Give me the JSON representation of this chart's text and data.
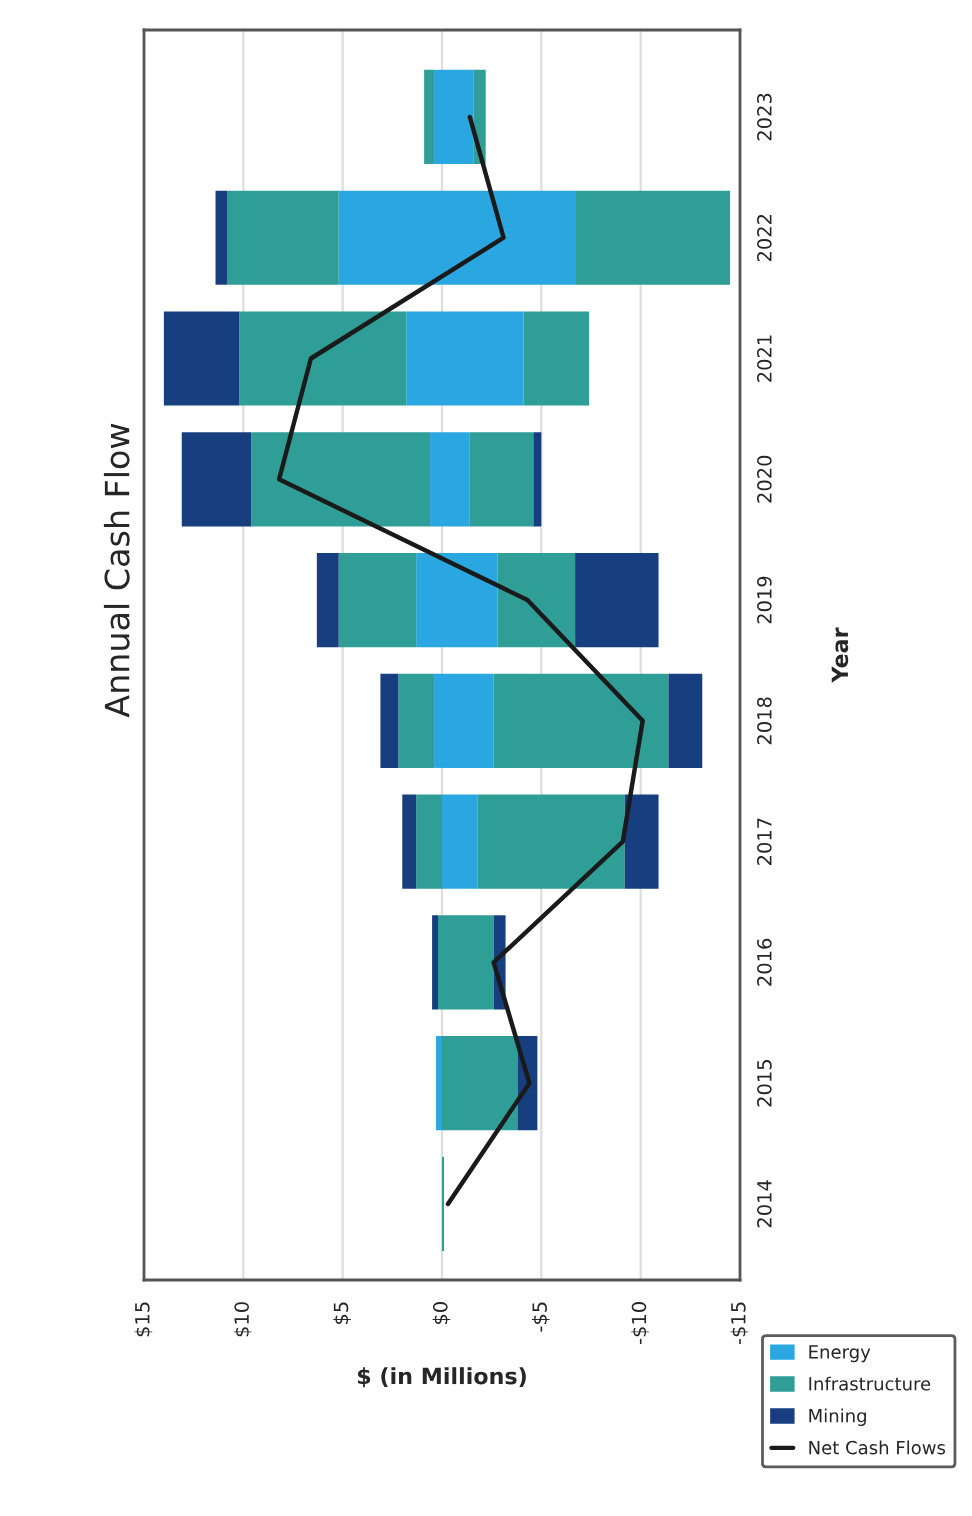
{
  "chart_data": {
    "type": "bar",
    "title": "Annual Cash Flow",
    "xlabel": "$ (in Millions)",
    "ylabel": "Year",
    "orientation": "horizontal",
    "stacked": true,
    "categories": [
      "2023",
      "2022",
      "2021",
      "2020",
      "2019",
      "2018",
      "2017",
      "2016",
      "2015",
      "2014"
    ],
    "series": [
      {
        "name": "Energy",
        "color": "#2aa7e0",
        "values": [
          0.4,
          5.2,
          1.8,
          0.6,
          1.3,
          0.4,
          null,
          null,
          0.3,
          null
        ]
      },
      {
        "name": "Infrastructure",
        "color": "#2e9e96",
        "values": [
          0.5,
          5.6,
          8.4,
          9.0,
          3.9,
          1.8,
          1.3,
          0.2,
          null,
          null
        ]
      },
      {
        "name": "Mining",
        "color": "#173f7f",
        "values": [
          null,
          0.6,
          3.8,
          3.5,
          1.1,
          0.9,
          0.7,
          0.3,
          null,
          null
        ]
      },
      {
        "color": "#2aa7e0",
        "values": [
          -1.6,
          -6.7,
          -4.1,
          -1.4,
          -2.8,
          -2.6,
          -1.8,
          null,
          null,
          null
        ]
      },
      {
        "color": "#2e9e96",
        "values": [
          -0.6,
          -7.8,
          -3.3,
          -3.2,
          -3.9,
          -8.8,
          -7.4,
          -2.6,
          -3.8,
          -0.1
        ]
      },
      {
        "color": "#173f7f",
        "values": [
          null,
          null,
          null,
          -0.4,
          -4.2,
          -1.7,
          -1.7,
          -0.6,
          -1.0,
          null
        ]
      },
      {
        "name": "Net Cash Flows",
        "type": "line",
        "color": "#1a1a1a",
        "values": [
          -1.4,
          -3.1,
          6.6,
          8.2,
          -4.3,
          -10.1,
          -9.1,
          -2.6,
          -4.4,
          -0.3
        ]
      }
    ],
    "xlim": [
      15,
      -15
    ],
    "xticks": [
      {
        "value": 15,
        "label": "$15"
      },
      {
        "value": 10,
        "label": "$10"
      },
      {
        "value": 5,
        "label": "$5"
      },
      {
        "value": 0,
        "label": "$0"
      },
      {
        "value": -5,
        "label": "-$5"
      },
      {
        "value": -10,
        "label": "-$10"
      },
      {
        "value": -15,
        "label": "-$15"
      }
    ],
    "grid": "x",
    "legend": "bottom right",
    "line_style": "solid",
    "marker": "none"
  }
}
